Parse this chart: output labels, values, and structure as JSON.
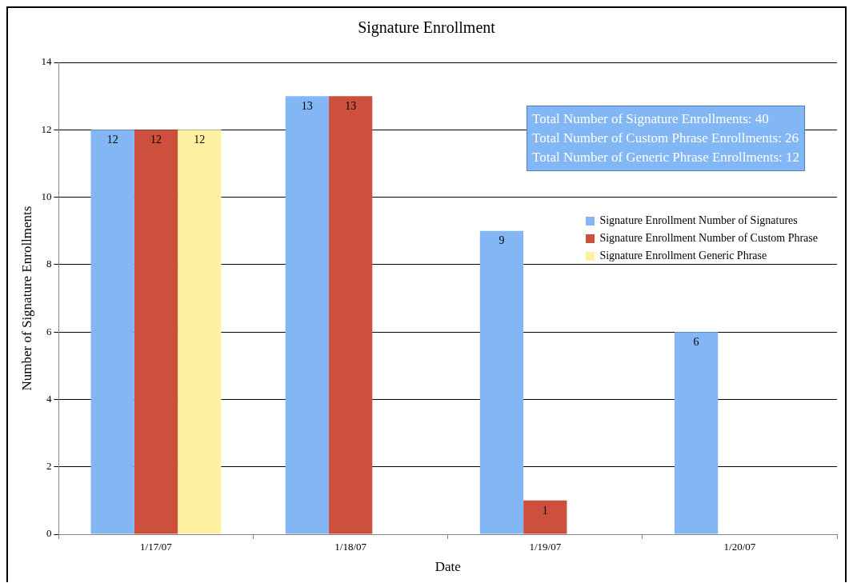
{
  "chart_data": {
    "type": "bar",
    "title": "Signature Enrollment",
    "xlabel": "Date",
    "ylabel": "Number of Signature Enrollments",
    "categories": [
      "1/17/07",
      "1/18/07",
      "1/19/07",
      "1/20/07"
    ],
    "series": [
      {
        "name": "Signature Enrollment Number of Signatures",
        "color": "#82b6f5",
        "values": [
          12,
          13,
          9,
          6
        ]
      },
      {
        "name": "Signature Enrollment Number of Custom Phrase",
        "color": "#cd4f3e",
        "values": [
          12,
          13,
          1,
          null
        ]
      },
      {
        "name": "Signature Enrollment Generic Phrase",
        "color": "#fdf0a0",
        "values": [
          12,
          null,
          null,
          null
        ]
      }
    ],
    "ylim": [
      0,
      14
    ],
    "yticks": [
      0,
      2,
      4,
      6,
      8,
      10,
      12,
      14
    ],
    "grid": "y",
    "legend": "right",
    "data_labels": true,
    "annotations": [
      "Total Number of Signature Enrollments:  40",
      "Total Number of Custom Phrase Enrollments:  26",
      "Total Number of Generic Phrase Enrollments:  12"
    ]
  }
}
